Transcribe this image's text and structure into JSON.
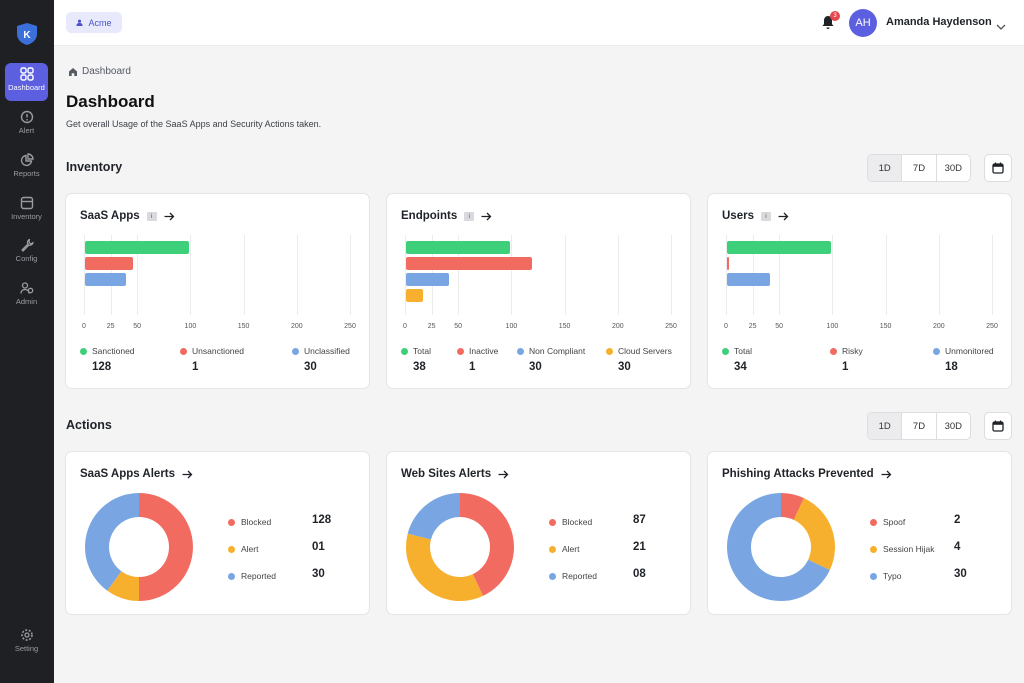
{
  "colors": {
    "accent": "#5b5fe0",
    "green": "#3ecf7a",
    "red": "#f26b61",
    "blue": "#79a6e2",
    "orange": "#f7b02d"
  },
  "sidebar": {
    "logo_letter": "K",
    "items": [
      {
        "label": "Dashboard",
        "icon": "grid-icon",
        "active": true
      },
      {
        "label": "Alert",
        "icon": "alert-circle-icon"
      },
      {
        "label": "Reports",
        "icon": "pie-chart-icon"
      },
      {
        "label": "Inventory",
        "icon": "archive-box-icon"
      },
      {
        "label": "Config",
        "icon": "wrench-icon"
      },
      {
        "label": "Admin",
        "icon": "users-icon"
      }
    ],
    "setting_label": "Setting"
  },
  "topbar": {
    "org_name": "Acme",
    "notification_count": "3",
    "avatar_initials": "AH",
    "user_name": "Amanda Haydenson"
  },
  "breadcrumb": {
    "label": "Dashboard"
  },
  "page": {
    "title": "Dashboard",
    "subtitle": "Get overall Usage of the SaaS Apps and Security Actions taken."
  },
  "inventory": {
    "title": "Inventory",
    "ranges": [
      "1D",
      "7D",
      "30D"
    ],
    "selected_range": "1D",
    "cards": [
      {
        "title": "SaaS Apps",
        "info": "i",
        "legend": [
          {
            "label": "Sanctioned",
            "value": "128",
            "color": "#3ecf7a"
          },
          {
            "label": "Unsanctioned",
            "value": "1",
            "color": "#f26b61"
          },
          {
            "label": "Unclassified",
            "value": "30",
            "color": "#79a6e2"
          }
        ]
      },
      {
        "title": "Endpoints",
        "info": "i",
        "legend": [
          {
            "label": "Total",
            "value": "38",
            "color": "#3ecf7a"
          },
          {
            "label": "Inactive",
            "value": "1",
            "color": "#f26b61"
          },
          {
            "label": "Non Compliant",
            "value": "30",
            "color": "#79a6e2"
          },
          {
            "label": "Cloud Servers",
            "value": "30",
            "color": "#f7b02d"
          }
        ]
      },
      {
        "title": "Users",
        "info": "i",
        "legend": [
          {
            "label": "Total",
            "value": "34",
            "color": "#3ecf7a"
          },
          {
            "label": "Risky",
            "value": "1",
            "color": "#f26b61"
          },
          {
            "label": "Unmonitored",
            "value": "18",
            "color": "#79a6e2"
          }
        ]
      }
    ]
  },
  "actions": {
    "title": "Actions",
    "ranges": [
      "1D",
      "7D",
      "30D"
    ],
    "selected_range": "1D",
    "cards": [
      {
        "title": "SaaS Apps Alerts",
        "rows": [
          {
            "label": "Blocked",
            "value": "128",
            "color": "#f26b61"
          },
          {
            "label": "Alert",
            "value": "01",
            "color": "#f7b02d"
          },
          {
            "label": "Reported",
            "value": "30",
            "color": "#79a6e2"
          }
        ]
      },
      {
        "title": "Web Sites Alerts",
        "rows": [
          {
            "label": "Blocked",
            "value": "87",
            "color": "#f26b61"
          },
          {
            "label": "Alert",
            "value": "21",
            "color": "#f7b02d"
          },
          {
            "label": "Reported",
            "value": "08",
            "color": "#79a6e2"
          }
        ]
      },
      {
        "title": "Phishing Attacks Prevented",
        "rows": [
          {
            "label": "Spoof",
            "value": "2",
            "color": "#f26b61"
          },
          {
            "label": "Session Hijak",
            "value": "4",
            "color": "#f7b02d"
          },
          {
            "label": "Typo",
            "value": "30",
            "color": "#79a6e2"
          }
        ]
      }
    ]
  },
  "chart_data": [
    {
      "type": "bar",
      "orientation": "horizontal",
      "categories": [
        "Sanctioned",
        "Unsanctioned",
        "Unclassified"
      ],
      "values": [
        98,
        45,
        39
      ],
      "colors": [
        "#3ecf7a",
        "#f26b61",
        "#79a6e2"
      ],
      "xticks": [
        "0",
        "25",
        "50",
        "100",
        "150",
        "200",
        "250"
      ],
      "xtick_values": [
        0,
        25,
        50,
        100,
        150,
        200,
        250
      ],
      "xlim": [
        0,
        250
      ],
      "grid": true
    },
    {
      "type": "bar",
      "orientation": "horizontal",
      "categories": [
        "Total",
        "Inactive",
        "Non Compliant",
        "Cloud Servers"
      ],
      "values": [
        98,
        118,
        40,
        16
      ],
      "colors": [
        "#3ecf7a",
        "#f26b61",
        "#79a6e2",
        "#f7b02d"
      ],
      "xticks": [
        "0",
        "25",
        "50",
        "100",
        "150",
        "200",
        "250"
      ],
      "xtick_values": [
        0,
        25,
        50,
        100,
        150,
        200,
        250
      ],
      "xlim": [
        0,
        250
      ],
      "grid": true
    },
    {
      "type": "bar",
      "orientation": "horizontal",
      "categories": [
        "Total",
        "Risky",
        "Unmonitored"
      ],
      "values": [
        98,
        2,
        40
      ],
      "colors": [
        "#3ecf7a",
        "#f26b61",
        "#79a6e2"
      ],
      "xticks": [
        "0",
        "25",
        "50",
        "100",
        "150",
        "200",
        "250"
      ],
      "xtick_values": [
        0,
        25,
        50,
        100,
        150,
        200,
        250
      ],
      "xlim": [
        0,
        250
      ],
      "grid": true
    },
    {
      "type": "pie",
      "donut": true,
      "categories": [
        "Blocked",
        "Alert",
        "Reported"
      ],
      "values": [
        50,
        10,
        40
      ],
      "colors": [
        "#f26b61",
        "#f7b02d",
        "#79a6e2"
      ]
    },
    {
      "type": "pie",
      "donut": true,
      "categories": [
        "Blocked",
        "Alert",
        "Reported"
      ],
      "values": [
        43,
        36,
        21
      ],
      "colors": [
        "#f26b61",
        "#f7b02d",
        "#79a6e2"
      ]
    },
    {
      "type": "pie",
      "donut": true,
      "categories": [
        "Spoof",
        "Session Hijak",
        "Typo"
      ],
      "values": [
        7,
        25,
        68
      ],
      "colors": [
        "#f26b61",
        "#f7b02d",
        "#79a6e2"
      ]
    }
  ]
}
